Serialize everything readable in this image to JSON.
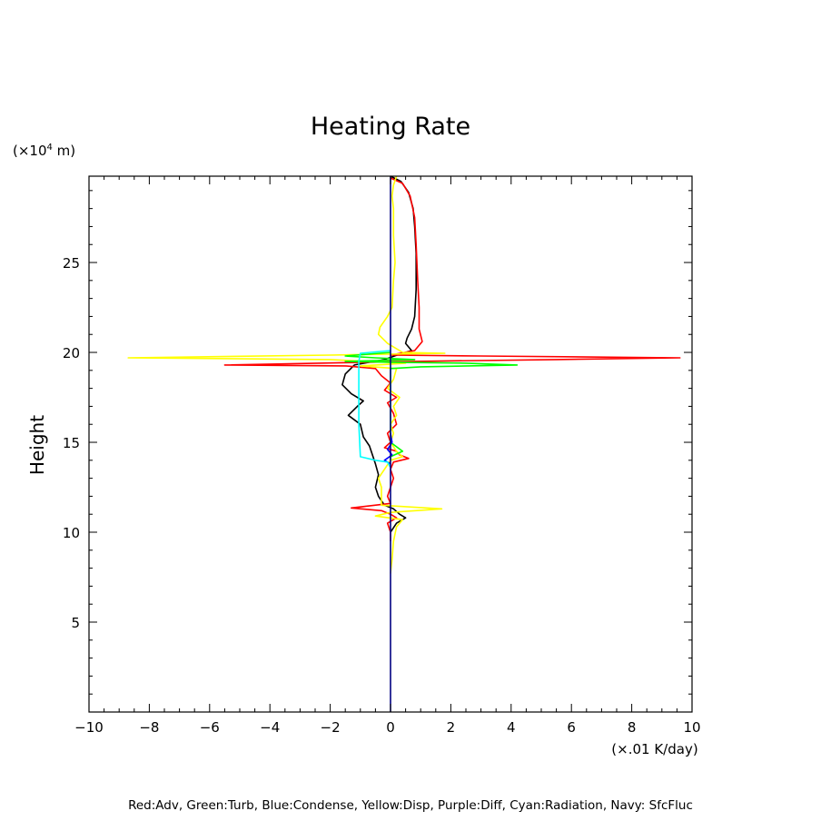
{
  "chart_data": {
    "type": "line",
    "title": "Heating Rate",
    "ylabel": "Height",
    "y_unit_base": "(×10",
    "y_unit_exp": "4",
    "y_unit_suffix": " m)",
    "x_unit": "(×.01 K/day)",
    "footer": "Red:Adv, Green:Turb, Blue:Condense, Yellow:Disp, Purple:Diff, Cyan:Radiation, Navy: SfcFluc",
    "xlim": [
      -10,
      10
    ],
    "ylim": [
      0,
      29.8
    ],
    "x_ticks": [
      -10,
      -8,
      -6,
      -4,
      -2,
      0,
      2,
      4,
      6,
      8,
      10
    ],
    "x_tick_labels": [
      "−10",
      "−8",
      "−6",
      "−4",
      "−2",
      "0",
      "2",
      "4",
      "6",
      "8",
      "10"
    ],
    "y_ticks": [
      5,
      10,
      15,
      20,
      25
    ],
    "y_tick_labels": [
      "5",
      "10",
      "15",
      "20",
      "25"
    ],
    "grid": false,
    "series": [
      {
        "color": "#000000",
        "points": [
          [
            0,
            29.8
          ],
          [
            0.35,
            29.5
          ],
          [
            0.6,
            28.9
          ],
          [
            0.75,
            28
          ],
          [
            0.8,
            27
          ],
          [
            0.85,
            25.5
          ],
          [
            0.85,
            23.5
          ],
          [
            0.8,
            22
          ],
          [
            0.7,
            21.3
          ],
          [
            0.55,
            20.8
          ],
          [
            0.5,
            20.5
          ],
          [
            0.7,
            20.1
          ],
          [
            0.3,
            19.9
          ],
          [
            -0.2,
            19.6
          ],
          [
            -1.2,
            19.3
          ],
          [
            -1.5,
            18.8
          ],
          [
            -1.6,
            18.2
          ],
          [
            -1.3,
            17.7
          ],
          [
            -0.9,
            17.3
          ],
          [
            -1.1,
            17
          ],
          [
            -1.4,
            16.5
          ],
          [
            -1,
            16
          ],
          [
            -0.9,
            15.3
          ],
          [
            -0.7,
            14.8
          ],
          [
            -0.6,
            14.3
          ],
          [
            -0.5,
            13.8
          ],
          [
            -0.4,
            13.2
          ],
          [
            -0.5,
            12.5
          ],
          [
            -0.4,
            12
          ],
          [
            -0.2,
            11.5
          ],
          [
            0.1,
            11.3
          ],
          [
            0.3,
            11.0
          ],
          [
            0.5,
            10.8
          ],
          [
            0.2,
            10.5
          ],
          [
            0,
            10
          ]
        ]
      },
      {
        "color": "#ff0000",
        "points": [
          [
            0,
            29.7
          ],
          [
            0.4,
            29.4
          ],
          [
            0.65,
            28.7
          ],
          [
            0.8,
            27.5
          ],
          [
            0.85,
            26
          ],
          [
            0.9,
            24
          ],
          [
            0.95,
            22.5
          ],
          [
            0.95,
            21.3
          ],
          [
            1.05,
            20.6
          ],
          [
            0.8,
            20.1
          ],
          [
            0,
            19.85
          ],
          [
            3,
            19.8
          ],
          [
            9.6,
            19.7
          ],
          [
            5.5,
            19.6
          ],
          [
            0.8,
            19.5
          ],
          [
            -5.5,
            19.3
          ],
          [
            -1.5,
            19.25
          ],
          [
            -0.5,
            19.1
          ],
          [
            -0.3,
            18.7
          ],
          [
            0,
            18.3
          ],
          [
            -0.2,
            17.9
          ],
          [
            0.2,
            17.5
          ],
          [
            -0.1,
            17.2
          ],
          [
            0.1,
            16.6
          ],
          [
            0.2,
            16
          ],
          [
            -0.1,
            15.5
          ],
          [
            0,
            15.0
          ],
          [
            -0.2,
            14.7
          ],
          [
            0.2,
            14.5
          ],
          [
            0.3,
            14.3
          ],
          [
            0.6,
            14.1
          ],
          [
            0.1,
            13.9
          ],
          [
            0,
            13.5
          ],
          [
            0.1,
            13
          ],
          [
            0,
            12.5
          ],
          [
            -0.1,
            12
          ],
          [
            0,
            11.6
          ],
          [
            -1.3,
            11.35
          ],
          [
            -0.3,
            11.2
          ],
          [
            0,
            11
          ],
          [
            0.2,
            10.8
          ],
          [
            -0.1,
            10.5
          ],
          [
            0,
            10
          ],
          [
            0,
            9.5
          ]
        ]
      },
      {
        "color": "#ffff00",
        "points": [
          [
            0.2,
            29.8
          ],
          [
            0.1,
            29.3
          ],
          [
            0.05,
            28.7
          ],
          [
            0.1,
            28
          ],
          [
            0.1,
            26.5
          ],
          [
            0.15,
            25
          ],
          [
            0.1,
            24
          ],
          [
            0.05,
            22.5
          ],
          [
            -0.1,
            22
          ],
          [
            -0.35,
            21.4
          ],
          [
            -0.4,
            21
          ],
          [
            -0.1,
            20.5
          ],
          [
            0.4,
            20
          ],
          [
            1.8,
            19.95
          ],
          [
            -2.0,
            19.85
          ],
          [
            -8.7,
            19.7
          ],
          [
            -2,
            19.6
          ],
          [
            0.5,
            19.4
          ],
          [
            -1.0,
            19.25
          ],
          [
            0.2,
            19.1
          ],
          [
            0.1,
            18.5
          ],
          [
            -0.1,
            18
          ],
          [
            0.3,
            17.5
          ],
          [
            0.1,
            17
          ],
          [
            0.2,
            16.5
          ],
          [
            0,
            16
          ],
          [
            0.1,
            15.5
          ],
          [
            0,
            15
          ],
          [
            0.2,
            14.5
          ],
          [
            0.4,
            14.2
          ],
          [
            0,
            14
          ],
          [
            -0.2,
            13.5
          ],
          [
            -0.4,
            13
          ],
          [
            -0.3,
            12.5
          ],
          [
            -0.3,
            12
          ],
          [
            -0.3,
            11.5
          ],
          [
            1.7,
            11.3
          ],
          [
            0,
            11.1
          ],
          [
            -0.5,
            10.9
          ],
          [
            0.4,
            10.7
          ],
          [
            0.2,
            10.3
          ],
          [
            0.1,
            9.5
          ],
          [
            0.05,
            8.5
          ],
          [
            0,
            7.7
          ]
        ]
      },
      {
        "color": "#00ff00",
        "points": [
          [
            0,
            20
          ],
          [
            -1.5,
            19.8
          ],
          [
            -0.5,
            19.7
          ],
          [
            0.8,
            19.6
          ],
          [
            -1.5,
            19.5
          ],
          [
            0.2,
            19.45
          ],
          [
            2.5,
            19.4
          ],
          [
            4.2,
            19.3
          ],
          [
            1,
            19.2
          ],
          [
            0,
            19.1
          ],
          [
            0,
            15
          ],
          [
            0.4,
            14.5
          ],
          [
            0,
            14.2
          ],
          [
            0,
            14
          ]
        ]
      },
      {
        "color": "#0000ff",
        "points": [
          [
            0,
            15.5
          ],
          [
            0.05,
            15
          ],
          [
            -0.1,
            14.6
          ],
          [
            0.05,
            14.3
          ],
          [
            -0.2,
            14.0
          ],
          [
            0,
            13.8
          ]
        ]
      },
      {
        "color": "#00ffff",
        "points": [
          [
            0,
            20.1
          ],
          [
            -1.0,
            19.95
          ],
          [
            -1.05,
            19.5
          ],
          [
            -1.05,
            18
          ],
          [
            -1.05,
            16
          ],
          [
            -1.0,
            14.2
          ],
          [
            -0.5,
            14
          ],
          [
            -0.1,
            13.9
          ],
          [
            0,
            13.6
          ]
        ]
      },
      {
        "color": "#000080",
        "points": [
          [
            0,
            0
          ],
          [
            0,
            29.8
          ]
        ]
      }
    ]
  }
}
